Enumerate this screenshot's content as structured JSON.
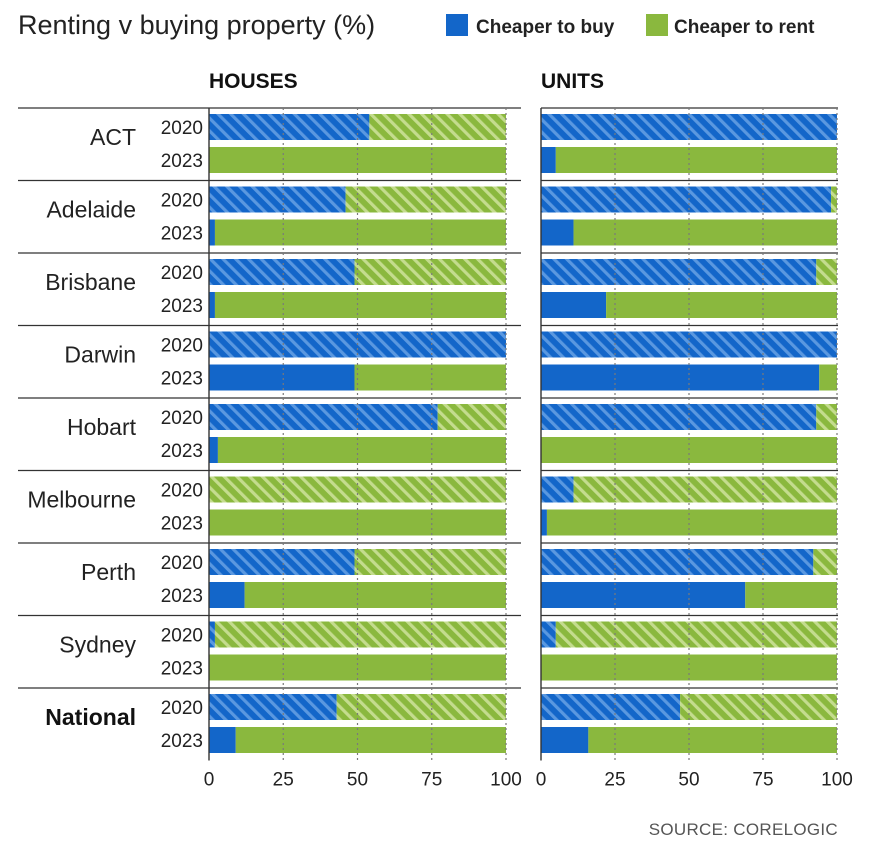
{
  "chart_data": {
    "type": "bar",
    "title": "Renting v buying property (%)",
    "source": "SOURCE: CORELOGIC",
    "legend": {
      "placement": "top-right",
      "entries": [
        {
          "key": "buy",
          "label": "Cheaper to buy",
          "color": "#1366c9"
        },
        {
          "key": "rent",
          "label": "Cheaper to rent",
          "color": "#8ab83e"
        }
      ]
    },
    "stacked": true,
    "orientation": "horizontal",
    "pattern_note": "2020 bars hatched",
    "xlim": [
      0,
      100
    ],
    "ticks": [
      "0",
      "25",
      "50",
      "75",
      "100"
    ],
    "grid": "vertical dotted at 25, 50, 75, 100",
    "years": [
      "2020",
      "2023"
    ],
    "regions": [
      {
        "name": "ACT",
        "bold": false
      },
      {
        "name": "Adelaide",
        "bold": false
      },
      {
        "name": "Brisbane",
        "bold": false
      },
      {
        "name": "Darwin",
        "bold": false
      },
      {
        "name": "Hobart",
        "bold": false
      },
      {
        "name": "Melbourne",
        "bold": false
      },
      {
        "name": "Perth",
        "bold": false
      },
      {
        "name": "Sydney",
        "bold": false
      },
      {
        "name": "National",
        "bold": true
      }
    ],
    "panels": [
      {
        "title": "HOUSES",
        "cheaper_to_buy": {
          "2020": [
            54,
            46,
            49,
            100,
            77,
            0,
            49,
            2,
            43
          ],
          "2023": [
            0,
            2,
            2,
            49,
            3,
            0,
            12,
            0,
            9
          ]
        }
      },
      {
        "title": "UNITS",
        "cheaper_to_buy": {
          "2020": [
            100,
            98,
            93,
            100,
            93,
            11,
            92,
            5,
            47
          ],
          "2023": [
            5,
            11,
            22,
            94,
            0,
            2,
            69,
            0,
            16
          ]
        }
      }
    ]
  }
}
